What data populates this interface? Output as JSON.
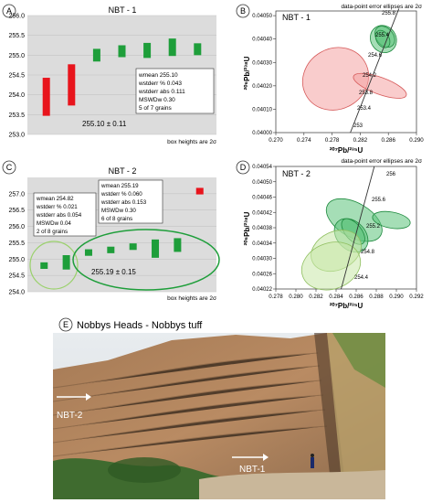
{
  "panels": {
    "A": {
      "letter": "A",
      "title": "NBT - 1",
      "stats_box": [
        "wmean 255.10",
        "wstderr % 0.043",
        "wstderr abs 0.111",
        "MSWDw 0.30",
        "5 of 7 grains"
      ],
      "age_label": "255.10 ± 0.11",
      "footnote": "box heights are 2σ"
    },
    "B": {
      "letter": "B",
      "title": "NBT - 1",
      "header": "data-point error ellipses are 2σ",
      "xlabel": "²⁰⁷Pb/²³⁵U",
      "ylabel": "²⁰⁶Pb/²³⁸U",
      "concordia_labels": [
        "255.8",
        "255.4",
        "254.6",
        "254.2",
        "253.8",
        "253.4",
        "253"
      ]
    },
    "C": {
      "letter": "C",
      "title": "NBT - 2",
      "stats_box_left": [
        "wmean 254.82",
        "wstderr % 0.021",
        "wstderr abs 0.054",
        "MSWDw 0.04",
        "2 of 8 grains"
      ],
      "stats_box_right": [
        "wmean 255.19",
        "wstderr % 0.060",
        "wstderr abs 0.153",
        "MSWDw 0.30",
        "6 of 8 grains"
      ],
      "age_label": "255.19 ± 0.15",
      "footnote": "box heights are 2σ"
    },
    "D": {
      "letter": "D",
      "title": "NBT - 2",
      "header": "data-point error ellipses are 2σ",
      "xlabel": "²⁰⁷Pb/²³⁵U",
      "ylabel": "²⁰⁶Pb/²³⁸U",
      "concordia_labels": [
        "256",
        "255.6",
        "255.2",
        "254.8",
        "254.4"
      ]
    },
    "E": {
      "letter": "E",
      "title": "Nobbys Heads - Nobbys tuff",
      "arrow_labels": [
        "NBT-2",
        "NBT-1"
      ]
    }
  },
  "colors": {
    "green": "#1e9e3a",
    "red": "#e8141c",
    "plot_bg": "#dcdcdc",
    "ellipse_red": "#f4a3a3",
    "ellipse_green": "#5bc27a"
  },
  "chart_data": [
    {
      "type": "bar",
      "id": "A",
      "ylim": [
        253,
        256
      ],
      "yticks": [
        253.0,
        253.5,
        254.0,
        254.5,
        255.0,
        255.5,
        256.0
      ],
      "bars": [
        {
          "center": 253.95,
          "half": 0.48,
          "color": "red"
        },
        {
          "center": 254.25,
          "half": 0.52,
          "color": "red"
        },
        {
          "center": 255.0,
          "half": 0.16,
          "color": "green"
        },
        {
          "center": 255.1,
          "half": 0.15,
          "color": "green"
        },
        {
          "center": 255.12,
          "half": 0.19,
          "color": "green"
        },
        {
          "center": 255.2,
          "half": 0.22,
          "color": "green"
        },
        {
          "center": 255.15,
          "half": 0.15,
          "color": "green"
        }
      ]
    },
    {
      "type": "bar",
      "id": "C",
      "ylim": [
        254,
        257.5
      ],
      "yticks": [
        254.0,
        254.5,
        255.0,
        255.5,
        256.0,
        256.5,
        257.0
      ],
      "bars": [
        {
          "center": 254.8,
          "half": 0.1,
          "color": "green"
        },
        {
          "center": 254.9,
          "half": 0.22,
          "color": "green"
        },
        {
          "center": 255.2,
          "half": 0.1,
          "color": "green"
        },
        {
          "center": 255.28,
          "half": 0.1,
          "color": "green"
        },
        {
          "center": 255.38,
          "half": 0.1,
          "color": "green"
        },
        {
          "center": 255.32,
          "half": 0.28,
          "color": "green"
        },
        {
          "center": 255.43,
          "half": 0.21,
          "color": "green"
        },
        {
          "center": 257.08,
          "half": 0.1,
          "color": "red"
        }
      ]
    },
    {
      "type": "scatter",
      "id": "B",
      "xlim": [
        0.27,
        0.29
      ],
      "ylim": [
        0.04,
        0.04052
      ],
      "xticks": [
        0.27,
        0.274,
        0.278,
        0.282,
        0.286,
        0.29
      ],
      "yticks": [
        0.04,
        0.0401,
        0.0402,
        0.0403,
        0.0404,
        0.0405
      ],
      "concordia": [
        [
          0.2806,
          0.04
        ],
        [
          0.2875,
          0.04053
        ]
      ],
      "ellipses": [
        {
          "cx": 0.2785,
          "cy": 0.04023,
          "rx": 0.0048,
          "ry": 0.00013,
          "rot": -30,
          "color": "red"
        },
        {
          "cx": 0.2848,
          "cy": 0.0402,
          "rx": 0.0012,
          "ry": 0.00012,
          "rot": -70,
          "color": "red"
        },
        {
          "cx": 0.2853,
          "cy": 0.0404,
          "rx": 0.0018,
          "ry": 6e-05,
          "rot": -35,
          "color": "green"
        },
        {
          "cx": 0.2855,
          "cy": 0.04041,
          "rx": 0.0012,
          "ry": 5e-05,
          "rot": -40,
          "color": "green"
        },
        {
          "cx": 0.2852,
          "cy": 0.0404,
          "rx": 0.0009,
          "ry": 4e-05,
          "rot": -30,
          "color": "green"
        }
      ]
    },
    {
      "type": "scatter",
      "id": "D",
      "xlim": [
        0.278,
        0.292
      ],
      "ylim": [
        0.04022,
        0.04054
      ],
      "xticks": [
        0.278,
        0.28,
        0.282,
        0.284,
        0.286,
        0.288,
        0.29,
        0.292
      ],
      "yticks": [
        0.04022,
        0.04026,
        0.0403,
        0.04034,
        0.04038,
        0.04042,
        0.04046,
        0.0405,
        0.04054
      ],
      "concordia": [
        [
          0.2845,
          0.04022
        ],
        [
          0.2878,
          0.04054
        ]
      ],
      "ellipses": [
        {
          "cx": 0.2858,
          "cy": 0.0404,
          "rx": 0.0017,
          "ry": 8e-05,
          "rot": -60,
          "color": "green"
        },
        {
          "cx": 0.2855,
          "cy": 0.04036,
          "rx": 0.0014,
          "ry": 5e-05,
          "rot": -45,
          "color": "green"
        },
        {
          "cx": 0.2857,
          "cy": 0.04037,
          "rx": 0.0008,
          "ry": 4e-05,
          "rot": -40,
          "color": "green"
        },
        {
          "cx": 0.2895,
          "cy": 0.0404,
          "rx": 0.0008,
          "ry": 5e-05,
          "rot": -80,
          "color": "green"
        },
        {
          "cx": 0.284,
          "cy": 0.04032,
          "rx": 0.0026,
          "ry": 5e-05,
          "rot": -25,
          "color": "lightgreen"
        },
        {
          "cx": 0.2835,
          "cy": 0.04028,
          "rx": 0.003,
          "ry": 6e-05,
          "rot": -20,
          "color": "lightgreen"
        }
      ]
    }
  ]
}
